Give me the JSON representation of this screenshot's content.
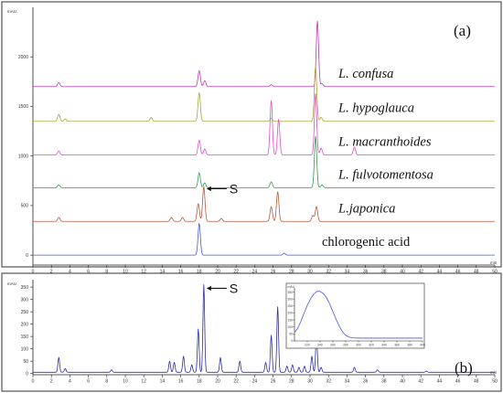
{
  "chart_data": [
    {
      "type": "line",
      "panel_label": "(a)",
      "y_unit": "mAU",
      "x_unit": "min",
      "xlim": [
        0,
        50
      ],
      "ylim": [
        -100,
        2500
      ],
      "x_ticks": [
        0,
        2,
        4,
        6,
        8,
        10,
        12,
        14,
        16,
        18,
        20,
        22,
        24,
        26,
        28,
        30,
        32,
        34,
        36,
        38,
        40,
        42,
        44,
        46,
        48,
        50
      ],
      "y_ticks": [
        0,
        500,
        1000,
        1500,
        2000
      ],
      "series": [
        {
          "name": "L. confusa",
          "italic": true,
          "color": "#c234b8",
          "baseline": 1700,
          "peaks": [
            [
              2.8,
              40
            ],
            [
              18.0,
              160
            ],
            [
              18.6,
              60
            ],
            [
              25.8,
              20
            ],
            [
              30.8,
              660
            ],
            [
              31.3,
              30
            ]
          ]
        },
        {
          "name": "L. hypoglauca",
          "italic": true,
          "color": "#a8a838",
          "baseline": 1350,
          "peaks": [
            [
              2.8,
              70
            ],
            [
              3.5,
              25
            ],
            [
              12.8,
              40
            ],
            [
              18.0,
              290
            ],
            [
              25.8,
              30
            ],
            [
              30.6,
              560
            ],
            [
              31.2,
              40
            ]
          ]
        },
        {
          "name": "L. macranthoides",
          "italic": true,
          "color": "#e04ec8",
          "baseline": 1010,
          "peaks": [
            [
              2.8,
              40
            ],
            [
              18.0,
              150
            ],
            [
              18.6,
              60
            ],
            [
              25.8,
              550
            ],
            [
              26.6,
              360
            ],
            [
              30.6,
              620
            ],
            [
              31.2,
              70
            ],
            [
              34.8,
              80
            ]
          ]
        },
        {
          "name": "L. fulvotomentosa",
          "italic": true,
          "color": "#2e9e4e",
          "baseline": 680,
          "peaks": [
            [
              2.8,
              30
            ],
            [
              18.0,
              150
            ],
            [
              18.6,
              50
            ],
            [
              25.8,
              60
            ],
            [
              30.6,
              520
            ],
            [
              31.3,
              30
            ]
          ]
        },
        {
          "name": "L.japonica",
          "italic": true,
          "color": "#b85a3a",
          "baseline": 340,
          "peaks": [
            [
              2.8,
              40
            ],
            [
              15.0,
              40
            ],
            [
              16.2,
              40
            ],
            [
              17.9,
              180
            ],
            [
              18.5,
              350
            ],
            [
              20.4,
              30
            ],
            [
              25.8,
              150
            ],
            [
              26.5,
              300
            ],
            [
              30.3,
              60
            ],
            [
              30.7,
              150
            ]
          ]
        },
        {
          "name": "chlorogenic acid",
          "italic": false,
          "color": "#4a5ad8",
          "baseline": 0,
          "peaks": [
            [
              18.0,
              320
            ],
            [
              27.2,
              20
            ]
          ]
        }
      ],
      "annotation": {
        "text": "S",
        "x": 18.5,
        "series": "L.japonica"
      }
    },
    {
      "type": "line",
      "panel_label": "(b)",
      "y_unit": "mAU",
      "x_unit": "min",
      "xlim": [
        0,
        50
      ],
      "ylim": [
        -5,
        380
      ],
      "x_ticks": [
        0,
        2,
        4,
        6,
        8,
        10,
        12,
        14,
        16,
        18,
        20,
        22,
        24,
        26,
        28,
        30,
        32,
        34,
        36,
        38,
        40,
        42,
        44,
        46,
        48,
        50
      ],
      "y_ticks": [
        0,
        50,
        100,
        150,
        200,
        250,
        300,
        350
      ],
      "series": [
        {
          "color": "#2c2ca8",
          "baseline": 5,
          "peaks": [
            [
              2.8,
              60
            ],
            [
              3.5,
              15
            ],
            [
              8.5,
              10
            ],
            [
              14.8,
              45
            ],
            [
              15.3,
              40
            ],
            [
              16.3,
              65
            ],
            [
              17.2,
              30
            ],
            [
              17.9,
              175
            ],
            [
              18.5,
              355
            ],
            [
              20.3,
              60
            ],
            [
              22.4,
              45
            ],
            [
              25.2,
              40
            ],
            [
              25.8,
              150
            ],
            [
              26.5,
              265
            ],
            [
              27.5,
              25
            ],
            [
              28.1,
              30
            ],
            [
              28.8,
              20
            ],
            [
              29.4,
              25
            ],
            [
              30.2,
              65
            ],
            [
              30.7,
              150
            ],
            [
              31.2,
              20
            ],
            [
              34.8,
              20
            ],
            [
              37.3,
              10
            ],
            [
              42.6,
              5
            ]
          ]
        }
      ],
      "annotation": {
        "text": "S",
        "x": 18.5
      },
      "inset": {
        "y_unit": "mAU",
        "y_ticks": [
          0,
          50,
          100,
          150,
          200,
          250,
          300,
          350
        ],
        "x_ticks": [
          220,
          240,
          260,
          280,
          300,
          320,
          340,
          360,
          380,
          400
        ],
        "xlim": [
          200,
          400
        ],
        "ylim": [
          0,
          380
        ],
        "spectrum": [
          [
            200,
            60
          ],
          [
            205,
            90
          ],
          [
            210,
            140
          ],
          [
            215,
            200
          ],
          [
            220,
            255
          ],
          [
            225,
            300
          ],
          [
            230,
            335
          ],
          [
            235,
            355
          ],
          [
            240,
            355
          ],
          [
            245,
            340
          ],
          [
            250,
            310
          ],
          [
            255,
            265
          ],
          [
            260,
            210
          ],
          [
            265,
            155
          ],
          [
            270,
            105
          ],
          [
            275,
            65
          ],
          [
            280,
            40
          ],
          [
            285,
            28
          ],
          [
            290,
            22
          ],
          [
            300,
            20
          ],
          [
            320,
            20
          ],
          [
            340,
            20
          ],
          [
            360,
            20
          ],
          [
            380,
            20
          ],
          [
            400,
            20
          ]
        ]
      }
    }
  ]
}
